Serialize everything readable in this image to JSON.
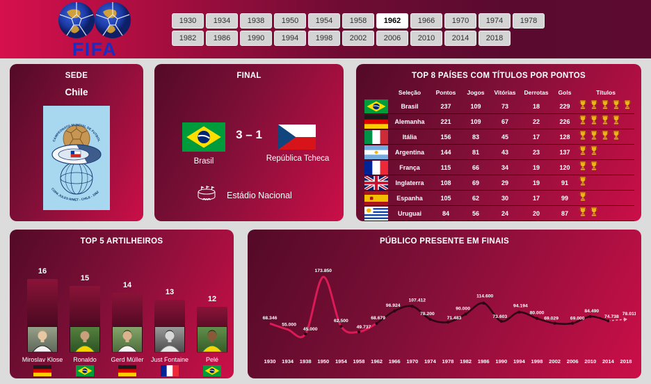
{
  "header": {
    "logo": "FIFA",
    "years_row1": [
      "1930",
      "1934",
      "1938",
      "1950",
      "1954",
      "1958",
      "1962",
      "1966",
      "1970",
      "1974",
      "1978"
    ],
    "years_row2": [
      "1982",
      "1986",
      "1990",
      "1994",
      "1998",
      "2002",
      "2006",
      "2010",
      "2014",
      "2018"
    ],
    "selected_year": "1962"
  },
  "sede": {
    "title": "SEDE",
    "country": "Chile",
    "poster_text_top": "CAMPEONATO MUNDIAL DE FUTBOL",
    "poster_text_bottom": "COPA JULES RIMET - CHILE - 1962"
  },
  "final": {
    "title": "FINAL",
    "score": "3 – 1",
    "home": {
      "name": "Brasil",
      "flag": "br"
    },
    "away": {
      "name": "República Tcheca",
      "flag": "cz"
    },
    "venue": "Estádio Nacional"
  },
  "titles_table": {
    "title": "TOP 8 PAÍSES COM TÍTULOS POR PONTOS",
    "columns": [
      "Seleção",
      "Pontos",
      "Jogos",
      "Vitórias",
      "Derrotas",
      "Gols",
      "Títulos"
    ],
    "rows": [
      {
        "flag": "br",
        "name": "Brasil",
        "pontos": "237",
        "jogos": "109",
        "vitorias": "73",
        "derrotas": "18",
        "gols": "229",
        "titulos": 5
      },
      {
        "flag": "de",
        "name": "Alemanha",
        "pontos": "221",
        "jogos": "109",
        "vitorias": "67",
        "derrotas": "22",
        "gols": "226",
        "titulos": 4
      },
      {
        "flag": "it",
        "name": "Itália",
        "pontos": "156",
        "jogos": "83",
        "vitorias": "45",
        "derrotas": "17",
        "gols": "128",
        "titulos": 4
      },
      {
        "flag": "ar",
        "name": "Argentina",
        "pontos": "144",
        "jogos": "81",
        "vitorias": "43",
        "derrotas": "23",
        "gols": "137",
        "titulos": 2
      },
      {
        "flag": "fr",
        "name": "França",
        "pontos": "115",
        "jogos": "66",
        "vitorias": "34",
        "derrotas": "19",
        "gols": "120",
        "titulos": 2
      },
      {
        "flag": "gb",
        "name": "Inglaterra",
        "pontos": "108",
        "jogos": "69",
        "vitorias": "29",
        "derrotas": "19",
        "gols": "91",
        "titulos": 1
      },
      {
        "flag": "es",
        "name": "Espanha",
        "pontos": "105",
        "jogos": "62",
        "vitorias": "30",
        "derrotas": "17",
        "gols": "99",
        "titulos": 1
      },
      {
        "flag": "uy",
        "name": "Uruguai",
        "pontos": "84",
        "jogos": "56",
        "vitorias": "24",
        "derrotas": "20",
        "gols": "87",
        "titulos": 2
      }
    ]
  },
  "chart_data": [
    {
      "type": "bar",
      "title": "TOP 5 ARTILHEIROS",
      "categories": [
        "Miroslav Klose",
        "Ronaldo",
        "Gerd Müller",
        "Just Fontaine",
        "Pelé"
      ],
      "values": [
        16,
        15,
        14,
        13,
        12
      ],
      "flags": [
        "de",
        "br",
        "de",
        "fr",
        "br"
      ],
      "photo_ids": [
        "klose",
        "ronaldo",
        "muller",
        "fontaine",
        "pele"
      ]
    },
    {
      "type": "line",
      "title": "PÚBLICO PRESENTE EM FINAIS",
      "x": [
        "1930",
        "1934",
        "1938",
        "1950",
        "1954",
        "1958",
        "1962",
        "1966",
        "1970",
        "1974",
        "1978",
        "1982",
        "1986",
        "1990",
        "1994",
        "1998",
        "2002",
        "2006",
        "2010",
        "2014",
        "2018"
      ],
      "values": [
        68346,
        55000,
        45000,
        173850,
        62500,
        49737,
        68679,
        96924,
        107412,
        78200,
        71483,
        90000,
        114600,
        73603,
        94194,
        80000,
        69029,
        69000,
        84490,
        74738,
        78011
      ],
      "labels": [
        "68.346",
        "55.000",
        "45.000",
        "173.850",
        "62.500",
        "49.737",
        "68.679",
        "96.924",
        "107.412",
        "78.200",
        "71.483",
        "90.000",
        "114.600",
        "73.603",
        "94.194",
        "80.000",
        "69.029",
        "69.000",
        "84.490",
        "74.738",
        "78.011"
      ],
      "split_year": "1962",
      "ylim": [
        40000,
        185000
      ],
      "line_color_before": "#dc1a55",
      "line_color_after": "#2f0416",
      "forecast_color": "#f2a9c4"
    }
  ],
  "colors": {
    "header_left": "#d6104d",
    "header_right": "#5c0a30",
    "card_gradient_start": "#530a27",
    "card_gradient_end": "#cb0f48",
    "accent_gold": "#f2b21a",
    "poster_bg": "#a8d8f0",
    "button_bg": "#d4d4d4",
    "button_selected_bg": "#ffffff"
  }
}
